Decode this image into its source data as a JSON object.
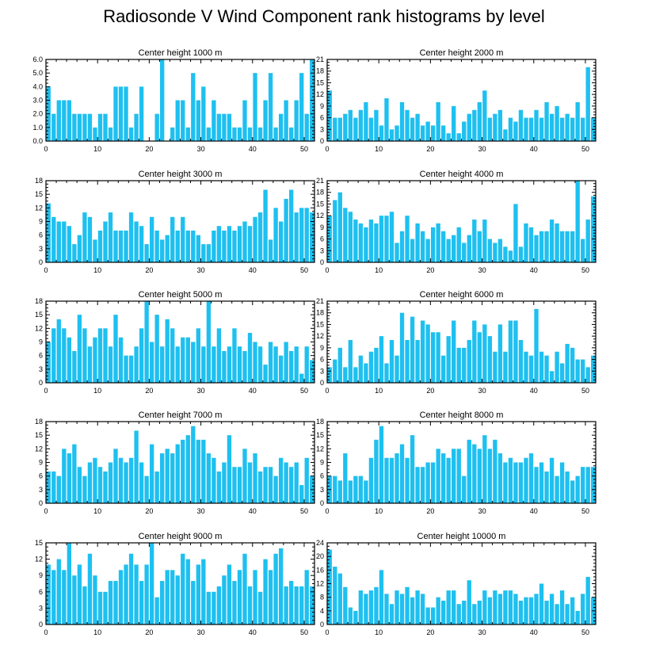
{
  "title": "Radiosonde V Wind Component rank histograms by level",
  "bar_color": "#1ec0f0",
  "chart_data": [
    {
      "type": "bar",
      "title": "Center height 1000 m",
      "xlabel": "",
      "ylabel": "",
      "xlim": [
        0,
        52
      ],
      "ylim": [
        0,
        6
      ],
      "yticks": [
        0,
        1,
        2,
        3,
        4,
        5,
        6
      ],
      "ytick_labels": [
        "0.0",
        "1.0",
        "2.0",
        "3.0",
        "4.0",
        "5.0",
        "6.0"
      ],
      "xticks": [
        0,
        10,
        20,
        30,
        40,
        50
      ],
      "categories": [
        0,
        1,
        2,
        3,
        4,
        5,
        6,
        7,
        8,
        9,
        10,
        11,
        12,
        13,
        14,
        15,
        16,
        17,
        18,
        19,
        20,
        21,
        22,
        23,
        24,
        25,
        26,
        27,
        28,
        29,
        30,
        31,
        32,
        33,
        34,
        35,
        36,
        37,
        38,
        39,
        40,
        41,
        42,
        43,
        44,
        45,
        46,
        47,
        48,
        49,
        50,
        51
      ],
      "values": [
        4,
        2,
        3,
        3,
        3,
        2,
        2,
        2,
        2,
        1,
        2,
        2,
        1,
        4,
        4,
        4,
        1,
        2,
        4,
        0,
        0,
        2,
        6,
        0,
        1,
        3,
        3,
        1,
        5,
        3,
        4,
        1,
        3,
        2,
        2,
        2,
        1,
        1,
        3,
        1,
        5,
        1,
        3,
        5,
        1,
        2,
        3,
        1,
        3,
        5,
        2,
        6
      ]
    },
    {
      "type": "bar",
      "title": "Center height 2000 m",
      "xlabel": "",
      "ylabel": "",
      "xlim": [
        0,
        52
      ],
      "ylim": [
        0,
        21
      ],
      "yticks": [
        0,
        3,
        6,
        9,
        12,
        15,
        18,
        21
      ],
      "ytick_labels": [
        "0",
        "3",
        "6",
        "9",
        "12",
        "15",
        "18",
        "21"
      ],
      "xticks": [
        0,
        10,
        20,
        30,
        40,
        50
      ],
      "categories": [
        0,
        1,
        2,
        3,
        4,
        5,
        6,
        7,
        8,
        9,
        10,
        11,
        12,
        13,
        14,
        15,
        16,
        17,
        18,
        19,
        20,
        21,
        22,
        23,
        24,
        25,
        26,
        27,
        28,
        29,
        30,
        31,
        32,
        33,
        34,
        35,
        36,
        37,
        38,
        39,
        40,
        41,
        42,
        43,
        44,
        45,
        46,
        47,
        48,
        49,
        50,
        51
      ],
      "values": [
        13,
        6,
        6,
        7,
        8,
        6,
        8,
        10,
        6,
        8,
        4,
        11,
        3,
        4,
        10,
        8,
        6,
        7,
        4,
        5,
        4,
        10,
        4,
        2,
        9,
        2,
        5,
        7,
        8,
        10,
        13,
        6,
        7,
        8,
        3,
        6,
        5,
        8,
        6,
        6,
        8,
        6,
        10,
        7,
        9,
        6,
        7,
        6,
        10,
        6,
        19,
        6
      ]
    },
    {
      "type": "bar",
      "title": "Center height 3000 m",
      "xlabel": "",
      "ylabel": "",
      "xlim": [
        0,
        52
      ],
      "ylim": [
        0,
        18
      ],
      "yticks": [
        0,
        3,
        6,
        9,
        12,
        15,
        18
      ],
      "ytick_labels": [
        "0",
        "3",
        "6",
        "9",
        "12",
        "15",
        "18"
      ],
      "xticks": [
        0,
        10,
        20,
        30,
        40,
        50
      ],
      "categories": [
        0,
        1,
        2,
        3,
        4,
        5,
        6,
        7,
        8,
        9,
        10,
        11,
        12,
        13,
        14,
        15,
        16,
        17,
        18,
        19,
        20,
        21,
        22,
        23,
        24,
        25,
        26,
        27,
        28,
        29,
        30,
        31,
        32,
        33,
        34,
        35,
        36,
        37,
        38,
        39,
        40,
        41,
        42,
        43,
        44,
        45,
        46,
        47,
        48,
        49,
        50,
        51
      ],
      "values": [
        13,
        10,
        9,
        9,
        8,
        4,
        6,
        11,
        10,
        5,
        7,
        9,
        11,
        7,
        7,
        7,
        11,
        9,
        8,
        4,
        10,
        7,
        5,
        6,
        10,
        7,
        10,
        7,
        7,
        6,
        4,
        4,
        7,
        8,
        7,
        8,
        7,
        8,
        9,
        8,
        10,
        11,
        16,
        5,
        12,
        9,
        14,
        16,
        11,
        12,
        12,
        11
      ]
    },
    {
      "type": "bar",
      "title": "Center height 4000 m",
      "xlabel": "",
      "ylabel": "",
      "xlim": [
        0,
        52
      ],
      "ylim": [
        0,
        21
      ],
      "yticks": [
        0,
        3,
        6,
        9,
        12,
        15,
        18,
        21
      ],
      "ytick_labels": [
        "0",
        "3",
        "6",
        "9",
        "12",
        "15",
        "18",
        "21"
      ],
      "xticks": [
        0,
        10,
        20,
        30,
        40,
        50
      ],
      "categories": [
        0,
        1,
        2,
        3,
        4,
        5,
        6,
        7,
        8,
        9,
        10,
        11,
        12,
        13,
        14,
        15,
        16,
        17,
        18,
        19,
        20,
        21,
        22,
        23,
        24,
        25,
        26,
        27,
        28,
        29,
        30,
        31,
        32,
        33,
        34,
        35,
        36,
        37,
        38,
        39,
        40,
        41,
        42,
        43,
        44,
        45,
        46,
        47,
        48,
        49,
        50,
        51
      ],
      "values": [
        12,
        16,
        18,
        14,
        13,
        11,
        10,
        9,
        11,
        10,
        12,
        12,
        13,
        5,
        8,
        12,
        6,
        10,
        8,
        6,
        9,
        10,
        8,
        6,
        7,
        9,
        5,
        7,
        11,
        8,
        11,
        6,
        5,
        6,
        4,
        3,
        15,
        4,
        10,
        9,
        7,
        8,
        8,
        11,
        10,
        8,
        8,
        8,
        21,
        6,
        11,
        17
      ]
    },
    {
      "type": "bar",
      "title": "Center height 5000 m",
      "xlabel": "",
      "ylabel": "",
      "xlim": [
        0,
        52
      ],
      "ylim": [
        0,
        18
      ],
      "yticks": [
        0,
        3,
        6,
        9,
        12,
        15,
        18
      ],
      "ytick_labels": [
        "0",
        "3",
        "6",
        "9",
        "12",
        "15",
        "18"
      ],
      "xticks": [
        0,
        10,
        20,
        30,
        40,
        50
      ],
      "categories": [
        0,
        1,
        2,
        3,
        4,
        5,
        6,
        7,
        8,
        9,
        10,
        11,
        12,
        13,
        14,
        15,
        16,
        17,
        18,
        19,
        20,
        21,
        22,
        23,
        24,
        25,
        26,
        27,
        28,
        29,
        30,
        31,
        32,
        33,
        34,
        35,
        36,
        37,
        38,
        39,
        40,
        41,
        42,
        43,
        44,
        45,
        46,
        47,
        48,
        49,
        50,
        51
      ],
      "values": [
        9,
        12,
        14,
        12,
        10,
        7,
        15,
        12,
        8,
        10,
        12,
        12,
        8,
        15,
        10,
        6,
        6,
        8,
        12,
        18,
        9,
        15,
        8,
        14,
        12,
        8,
        10,
        10,
        9,
        12,
        8,
        18,
        8,
        12,
        7,
        8,
        12,
        8,
        7,
        11,
        9,
        8,
        4,
        9,
        8,
        6,
        9,
        7,
        8,
        2,
        8,
        5
      ]
    },
    {
      "type": "bar",
      "title": "Center height 6000 m",
      "xlabel": "",
      "ylabel": "",
      "xlim": [
        0,
        52
      ],
      "ylim": [
        0,
        21
      ],
      "yticks": [
        0,
        3,
        6,
        9,
        12,
        15,
        18,
        21
      ],
      "ytick_labels": [
        "0",
        "3",
        "6",
        "9",
        "12",
        "15",
        "18",
        "21"
      ],
      "xticks": [
        0,
        10,
        20,
        30,
        40,
        50
      ],
      "categories": [
        0,
        1,
        2,
        3,
        4,
        5,
        6,
        7,
        8,
        9,
        10,
        11,
        12,
        13,
        14,
        15,
        16,
        17,
        18,
        19,
        20,
        21,
        22,
        23,
        24,
        25,
        26,
        27,
        28,
        29,
        30,
        31,
        32,
        33,
        34,
        35,
        36,
        37,
        38,
        39,
        40,
        41,
        42,
        43,
        44,
        45,
        46,
        47,
        48,
        49,
        50,
        51
      ],
      "values": [
        4,
        6,
        9,
        4,
        11,
        4,
        7,
        5,
        8,
        9,
        12,
        5,
        11,
        7,
        18,
        11,
        17,
        11,
        16,
        15,
        13,
        13,
        7,
        12,
        16,
        9,
        9,
        11,
        16,
        13,
        15,
        12,
        8,
        15,
        8,
        16,
        16,
        11,
        8,
        7,
        19,
        8,
        7,
        3,
        8,
        5,
        10,
        9,
        6,
        6,
        4,
        7
      ]
    },
    {
      "type": "bar",
      "title": "Center height 7000 m",
      "xlabel": "",
      "ylabel": "",
      "xlim": [
        0,
        52
      ],
      "ylim": [
        0,
        18
      ],
      "yticks": [
        0,
        3,
        6,
        9,
        12,
        15,
        18
      ],
      "ytick_labels": [
        "0",
        "3",
        "6",
        "9",
        "12",
        "15",
        "18"
      ],
      "xticks": [
        0,
        10,
        20,
        30,
        40,
        50
      ],
      "categories": [
        0,
        1,
        2,
        3,
        4,
        5,
        6,
        7,
        8,
        9,
        10,
        11,
        12,
        13,
        14,
        15,
        16,
        17,
        18,
        19,
        20,
        21,
        22,
        23,
        24,
        25,
        26,
        27,
        28,
        29,
        30,
        31,
        32,
        33,
        34,
        35,
        36,
        37,
        38,
        39,
        40,
        41,
        42,
        43,
        44,
        45,
        46,
        47,
        48,
        49,
        50,
        51
      ],
      "values": [
        7,
        7,
        6,
        12,
        11,
        13,
        8,
        6,
        9,
        10,
        8,
        7,
        9,
        12,
        10,
        9,
        10,
        16,
        9,
        6,
        13,
        7,
        11,
        12,
        11,
        13,
        14,
        15,
        17,
        14,
        14,
        11,
        10,
        7,
        9,
        15,
        8,
        8,
        12,
        9,
        11,
        7,
        8,
        8,
        6,
        10,
        9,
        8,
        9,
        4,
        10,
        6
      ]
    },
    {
      "type": "bar",
      "title": "Center height 8000 m",
      "xlabel": "",
      "ylabel": "",
      "xlim": [
        0,
        52
      ],
      "ylim": [
        0,
        18
      ],
      "yticks": [
        0,
        3,
        6,
        9,
        12,
        15,
        18
      ],
      "ytick_labels": [
        "0",
        "3",
        "6",
        "9",
        "12",
        "15",
        "18"
      ],
      "xticks": [
        0,
        10,
        20,
        30,
        40,
        50
      ],
      "categories": [
        0,
        1,
        2,
        3,
        4,
        5,
        6,
        7,
        8,
        9,
        10,
        11,
        12,
        13,
        14,
        15,
        16,
        17,
        18,
        19,
        20,
        21,
        22,
        23,
        24,
        25,
        26,
        27,
        28,
        29,
        30,
        31,
        32,
        33,
        34,
        35,
        36,
        37,
        38,
        39,
        40,
        41,
        42,
        43,
        44,
        45,
        46,
        47,
        48,
        49,
        50,
        51
      ],
      "values": [
        6,
        6,
        5,
        11,
        5,
        6,
        6,
        5,
        10,
        14,
        17,
        10,
        10,
        11,
        13,
        10,
        15,
        8,
        8,
        9,
        9,
        12,
        11,
        10,
        12,
        12,
        6,
        14,
        13,
        12,
        15,
        12,
        14,
        11,
        9,
        10,
        9,
        9,
        10,
        11,
        8,
        9,
        7,
        10,
        6,
        9,
        7,
        5,
        6,
        8,
        8,
        8
      ]
    },
    {
      "type": "bar",
      "title": "Center height 9000 m",
      "xlabel": "",
      "ylabel": "",
      "xlim": [
        0,
        52
      ],
      "ylim": [
        0,
        15
      ],
      "yticks": [
        0,
        3,
        6,
        9,
        12,
        15
      ],
      "ytick_labels": [
        "0",
        "3",
        "6",
        "9",
        "12",
        "15"
      ],
      "xticks": [
        0,
        10,
        20,
        30,
        40,
        50
      ],
      "categories": [
        0,
        1,
        2,
        3,
        4,
        5,
        6,
        7,
        8,
        9,
        10,
        11,
        12,
        13,
        14,
        15,
        16,
        17,
        18,
        19,
        20,
        21,
        22,
        23,
        24,
        25,
        26,
        27,
        28,
        29,
        30,
        31,
        32,
        33,
        34,
        35,
        36,
        37,
        38,
        39,
        40,
        41,
        42,
        43,
        44,
        45,
        46,
        47,
        48,
        49,
        50,
        51
      ],
      "values": [
        11,
        10,
        12,
        10,
        15,
        9,
        11,
        7,
        13,
        9,
        6,
        6,
        8,
        8,
        10,
        11,
        13,
        11,
        8,
        11,
        15,
        5,
        8,
        10,
        10,
        9,
        13,
        12,
        8,
        11,
        12,
        6,
        6,
        7,
        9,
        11,
        8,
        10,
        13,
        7,
        10,
        6,
        12,
        10,
        13,
        14,
        7,
        8,
        7,
        7,
        10,
        7
      ]
    },
    {
      "type": "bar",
      "title": "Center height 10000 m",
      "xlabel": "",
      "ylabel": "",
      "xlim": [
        0,
        52
      ],
      "ylim": [
        0,
        24
      ],
      "yticks": [
        0,
        4,
        8,
        12,
        16,
        20,
        24
      ],
      "ytick_labels": [
        "0",
        "4",
        "8",
        "12",
        "16",
        "20",
        "24"
      ],
      "xticks": [
        0,
        10,
        20,
        30,
        40,
        50
      ],
      "categories": [
        0,
        1,
        2,
        3,
        4,
        5,
        6,
        7,
        8,
        9,
        10,
        11,
        12,
        13,
        14,
        15,
        16,
        17,
        18,
        19,
        20,
        21,
        22,
        23,
        24,
        25,
        26,
        27,
        28,
        29,
        30,
        31,
        32,
        33,
        34,
        35,
        36,
        37,
        38,
        39,
        40,
        41,
        42,
        43,
        44,
        45,
        46,
        47,
        48,
        49,
        50,
        51
      ],
      "values": [
        22,
        17,
        15,
        11,
        5,
        4,
        10,
        9,
        10,
        11,
        16,
        9,
        6,
        10,
        9,
        11,
        8,
        10,
        9,
        5,
        5,
        8,
        7,
        10,
        10,
        6,
        7,
        13,
        6,
        7,
        10,
        8,
        10,
        9,
        10,
        10,
        9,
        7,
        8,
        8,
        9,
        12,
        7,
        9,
        6,
        10,
        6,
        8,
        4,
        9,
        14,
        8
      ]
    }
  ]
}
